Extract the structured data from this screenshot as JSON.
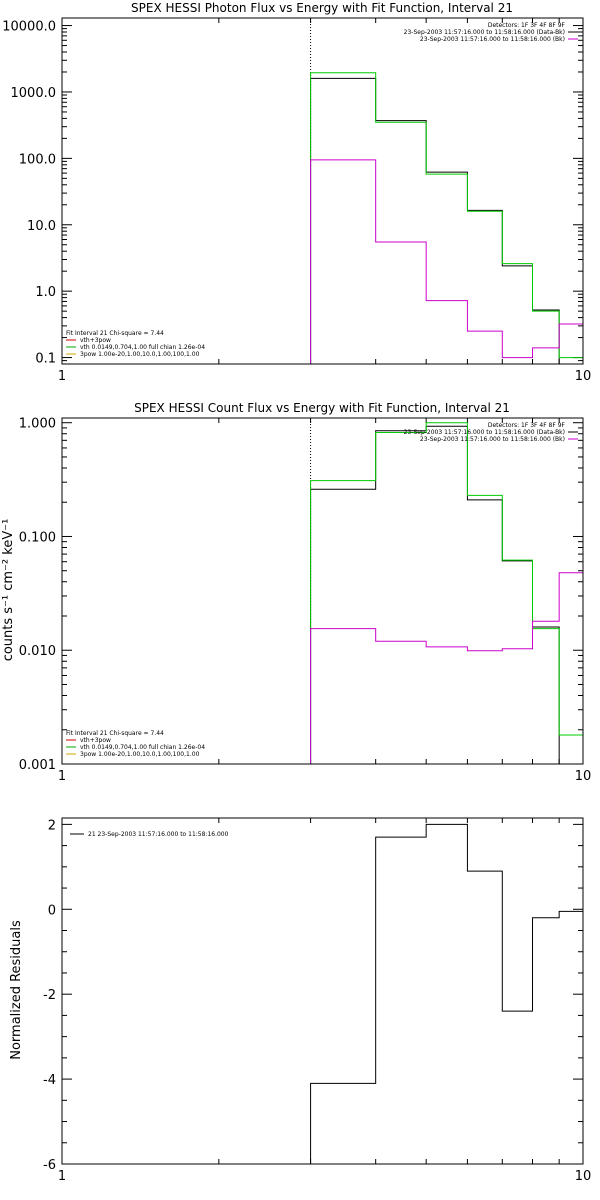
{
  "chart_data": [
    {
      "type": "line",
      "title": "SPEX HESSI Photon Flux vs Energy with Fit Function, Interval 21",
      "xlabel": "",
      "ylabel": "",
      "xscale": "log",
      "yscale": "log",
      "xlim": [
        1,
        10
      ],
      "ylim": [
        0.08,
        13000
      ],
      "x_ticks": [
        1,
        10
      ],
      "x_tick_labels": [
        "1",
        "10"
      ],
      "y_ticks": [
        0.1,
        1,
        10,
        100,
        1000,
        10000
      ],
      "y_tick_labels": [
        "0.1",
        "1.0",
        "10.0",
        "100.0",
        "1000.0",
        "10000.0"
      ],
      "vline": 3,
      "legend_tr": [
        {
          "text": "Detectors: 1F 3F 4F 8F 9F",
          "color": "#000000"
        },
        {
          "text": "23-Sep-2003 11:57:16.000 to 11:58:16.000 (Data-Bk)",
          "color": "#000000"
        },
        {
          "text": "23-Sep-2003 11:57:16.000 to 11:58:16.000 (Bk)",
          "color": "#cc00cc"
        }
      ],
      "legend_bl": [
        {
          "text": "Fit Interval 21    Chi-square = 7.44",
          "color": "#000000"
        },
        {
          "text": "vth+3pow",
          "color": "#cc0000"
        },
        {
          "text": "vth 0.0149,0.704,1.00  full chian 1.26e-04",
          "color": "#00aa00"
        },
        {
          "text": "3pow 1.00e-20,1.00,10.0,1.00,100,1.00",
          "color": "#ccaa00"
        }
      ],
      "series": [
        {
          "name": "Data-Bk",
          "color": "#000000",
          "edges": [
            3,
            4,
            5,
            6,
            7,
            8,
            9,
            10
          ],
          "values": [
            1600,
            370,
            62,
            16.5,
            2.4,
            0.52,
            0.078
          ]
        },
        {
          "name": "vth+3pow",
          "color": "#00cc00",
          "edges": [
            3,
            4,
            5,
            6,
            7,
            8,
            9,
            10
          ],
          "values": [
            1950,
            350,
            58,
            16.0,
            2.6,
            0.5,
            0.1
          ]
        },
        {
          "name": "Bk",
          "color": "#cc00cc",
          "edges": [
            3,
            4,
            5,
            6,
            7,
            8,
            9,
            10
          ],
          "values": [
            95,
            5.5,
            0.72,
            0.25,
            0.1,
            0.14,
            0.32
          ]
        }
      ]
    },
    {
      "type": "line",
      "title": "SPEX HESSI Count Flux vs Energy with Fit Function, Interval 21",
      "xlabel": "",
      "ylabel": "counts s⁻¹ cm⁻² keV⁻¹",
      "xscale": "log",
      "yscale": "log",
      "xlim": [
        1,
        10
      ],
      "ylim": [
        0.001,
        1.1
      ],
      "x_ticks": [
        1,
        10
      ],
      "x_tick_labels": [
        "1",
        "10"
      ],
      "y_ticks": [
        0.001,
        0.01,
        0.1,
        1
      ],
      "y_tick_labels": [
        "0.001",
        "0.010",
        "0.100",
        "1.000"
      ],
      "vline": 3,
      "legend_tr": [
        {
          "text": "Detectors: 1F 3F 4F 8F 9F",
          "color": "#000000"
        },
        {
          "text": "23-Sep-2003 11:57:16.000 to 11:58:16.000 (Data-Bk)",
          "color": "#000000"
        },
        {
          "text": "23-Sep-2003 11:57:16.000 to 11:58:16.000 (Bk)",
          "color": "#cc00cc"
        }
      ],
      "legend_bl": [
        {
          "text": "Fit Interval 21    Chi-square = 7.44",
          "color": "#000000"
        },
        {
          "text": "vth+3pow",
          "color": "#cc0000"
        },
        {
          "text": "vth 0.0149,0.704,1.00  full chian 1.26e-04",
          "color": "#00aa00"
        },
        {
          "text": "3pow 1.00e-20,1.00,10.0,1.00,100,1.00",
          "color": "#ccaa00"
        }
      ],
      "series": [
        {
          "name": "Data-Bk",
          "color": "#000000",
          "edges": [
            3,
            4,
            5,
            6,
            7,
            8,
            9,
            10
          ],
          "values": [
            0.26,
            0.85,
            0.93,
            0.21,
            0.061,
            0.016,
            0.0009
          ]
        },
        {
          "name": "vth+3pow",
          "color": "#00cc00",
          "edges": [
            3,
            4,
            5,
            6,
            7,
            8,
            9,
            10
          ],
          "values": [
            0.31,
            0.82,
            1.0,
            0.23,
            0.062,
            0.0155,
            0.0018
          ]
        },
        {
          "name": "Bk",
          "color": "#cc00cc",
          "edges": [
            3,
            4,
            5,
            6,
            7,
            8,
            9,
            10
          ],
          "values": [
            0.0155,
            0.012,
            0.0107,
            0.0099,
            0.0103,
            0.018,
            0.048
          ]
        }
      ]
    },
    {
      "type": "line",
      "title": "",
      "xlabel": "",
      "ylabel": "Normalized Residuals",
      "xscale": "log",
      "yscale": "linear",
      "xlim": [
        1,
        10
      ],
      "ylim": [
        -6,
        2.15
      ],
      "x_ticks": [
        1,
        10
      ],
      "x_tick_labels": [
        "1",
        "10"
      ],
      "y_ticks": [
        -6,
        -4,
        -2,
        0,
        2
      ],
      "y_tick_labels": [
        "-6",
        "-4",
        "-2",
        "0",
        "2"
      ],
      "legend_tl": [
        {
          "text": "21  23-Sep-2003 11:57:16.000 to 11:58:16.000",
          "color": "#000000"
        }
      ],
      "series": [
        {
          "name": "21",
          "color": "#000000",
          "edges": [
            3,
            4,
            5,
            6,
            7,
            8,
            9,
            10
          ],
          "values": [
            -4.1,
            1.7,
            2.0,
            0.9,
            -2.4,
            -0.2,
            -0.05
          ]
        }
      ]
    }
  ]
}
